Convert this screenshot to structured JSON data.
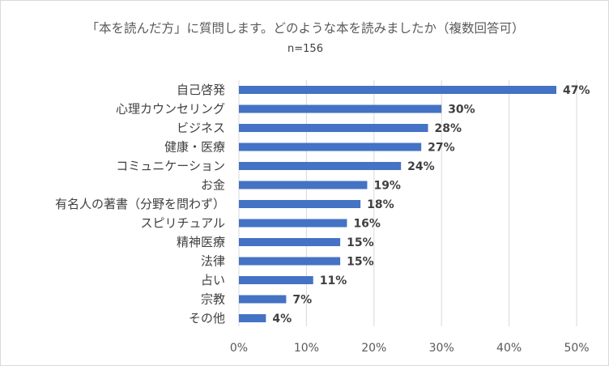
{
  "chart_data": {
    "type": "bar",
    "orientation": "horizontal",
    "title": "「本を読んだ方」に質問します。どのような本を読みましたか（複数回答可）",
    "subtitle": "n=156",
    "categories": [
      "自己啓発",
      "心理カウンセリング",
      "ビジネス",
      "健康・医療",
      "コミュニケーション",
      "お金",
      "有名人の著書（分野を問わず）",
      "スピリチュアル",
      "精神医療",
      "法律",
      "占い",
      "宗教",
      "その他"
    ],
    "values": [
      47,
      30,
      28,
      27,
      24,
      19,
      18,
      16,
      15,
      15,
      11,
      7,
      4
    ],
    "value_labels": [
      "47%",
      "30%",
      "28%",
      "27%",
      "24%",
      "19%",
      "18%",
      "16%",
      "15%",
      "15%",
      "11%",
      "7%",
      "4%"
    ],
    "xlim": [
      0,
      50
    ],
    "ticks": [
      0,
      10,
      20,
      30,
      40,
      50
    ],
    "tick_labels": [
      "0%",
      "10%",
      "20%",
      "30%",
      "40%",
      "50%"
    ],
    "grid": true,
    "xlabel": "",
    "ylabel": "",
    "bar_color": "#4472c4",
    "grid_color": "#d9d9d9"
  }
}
